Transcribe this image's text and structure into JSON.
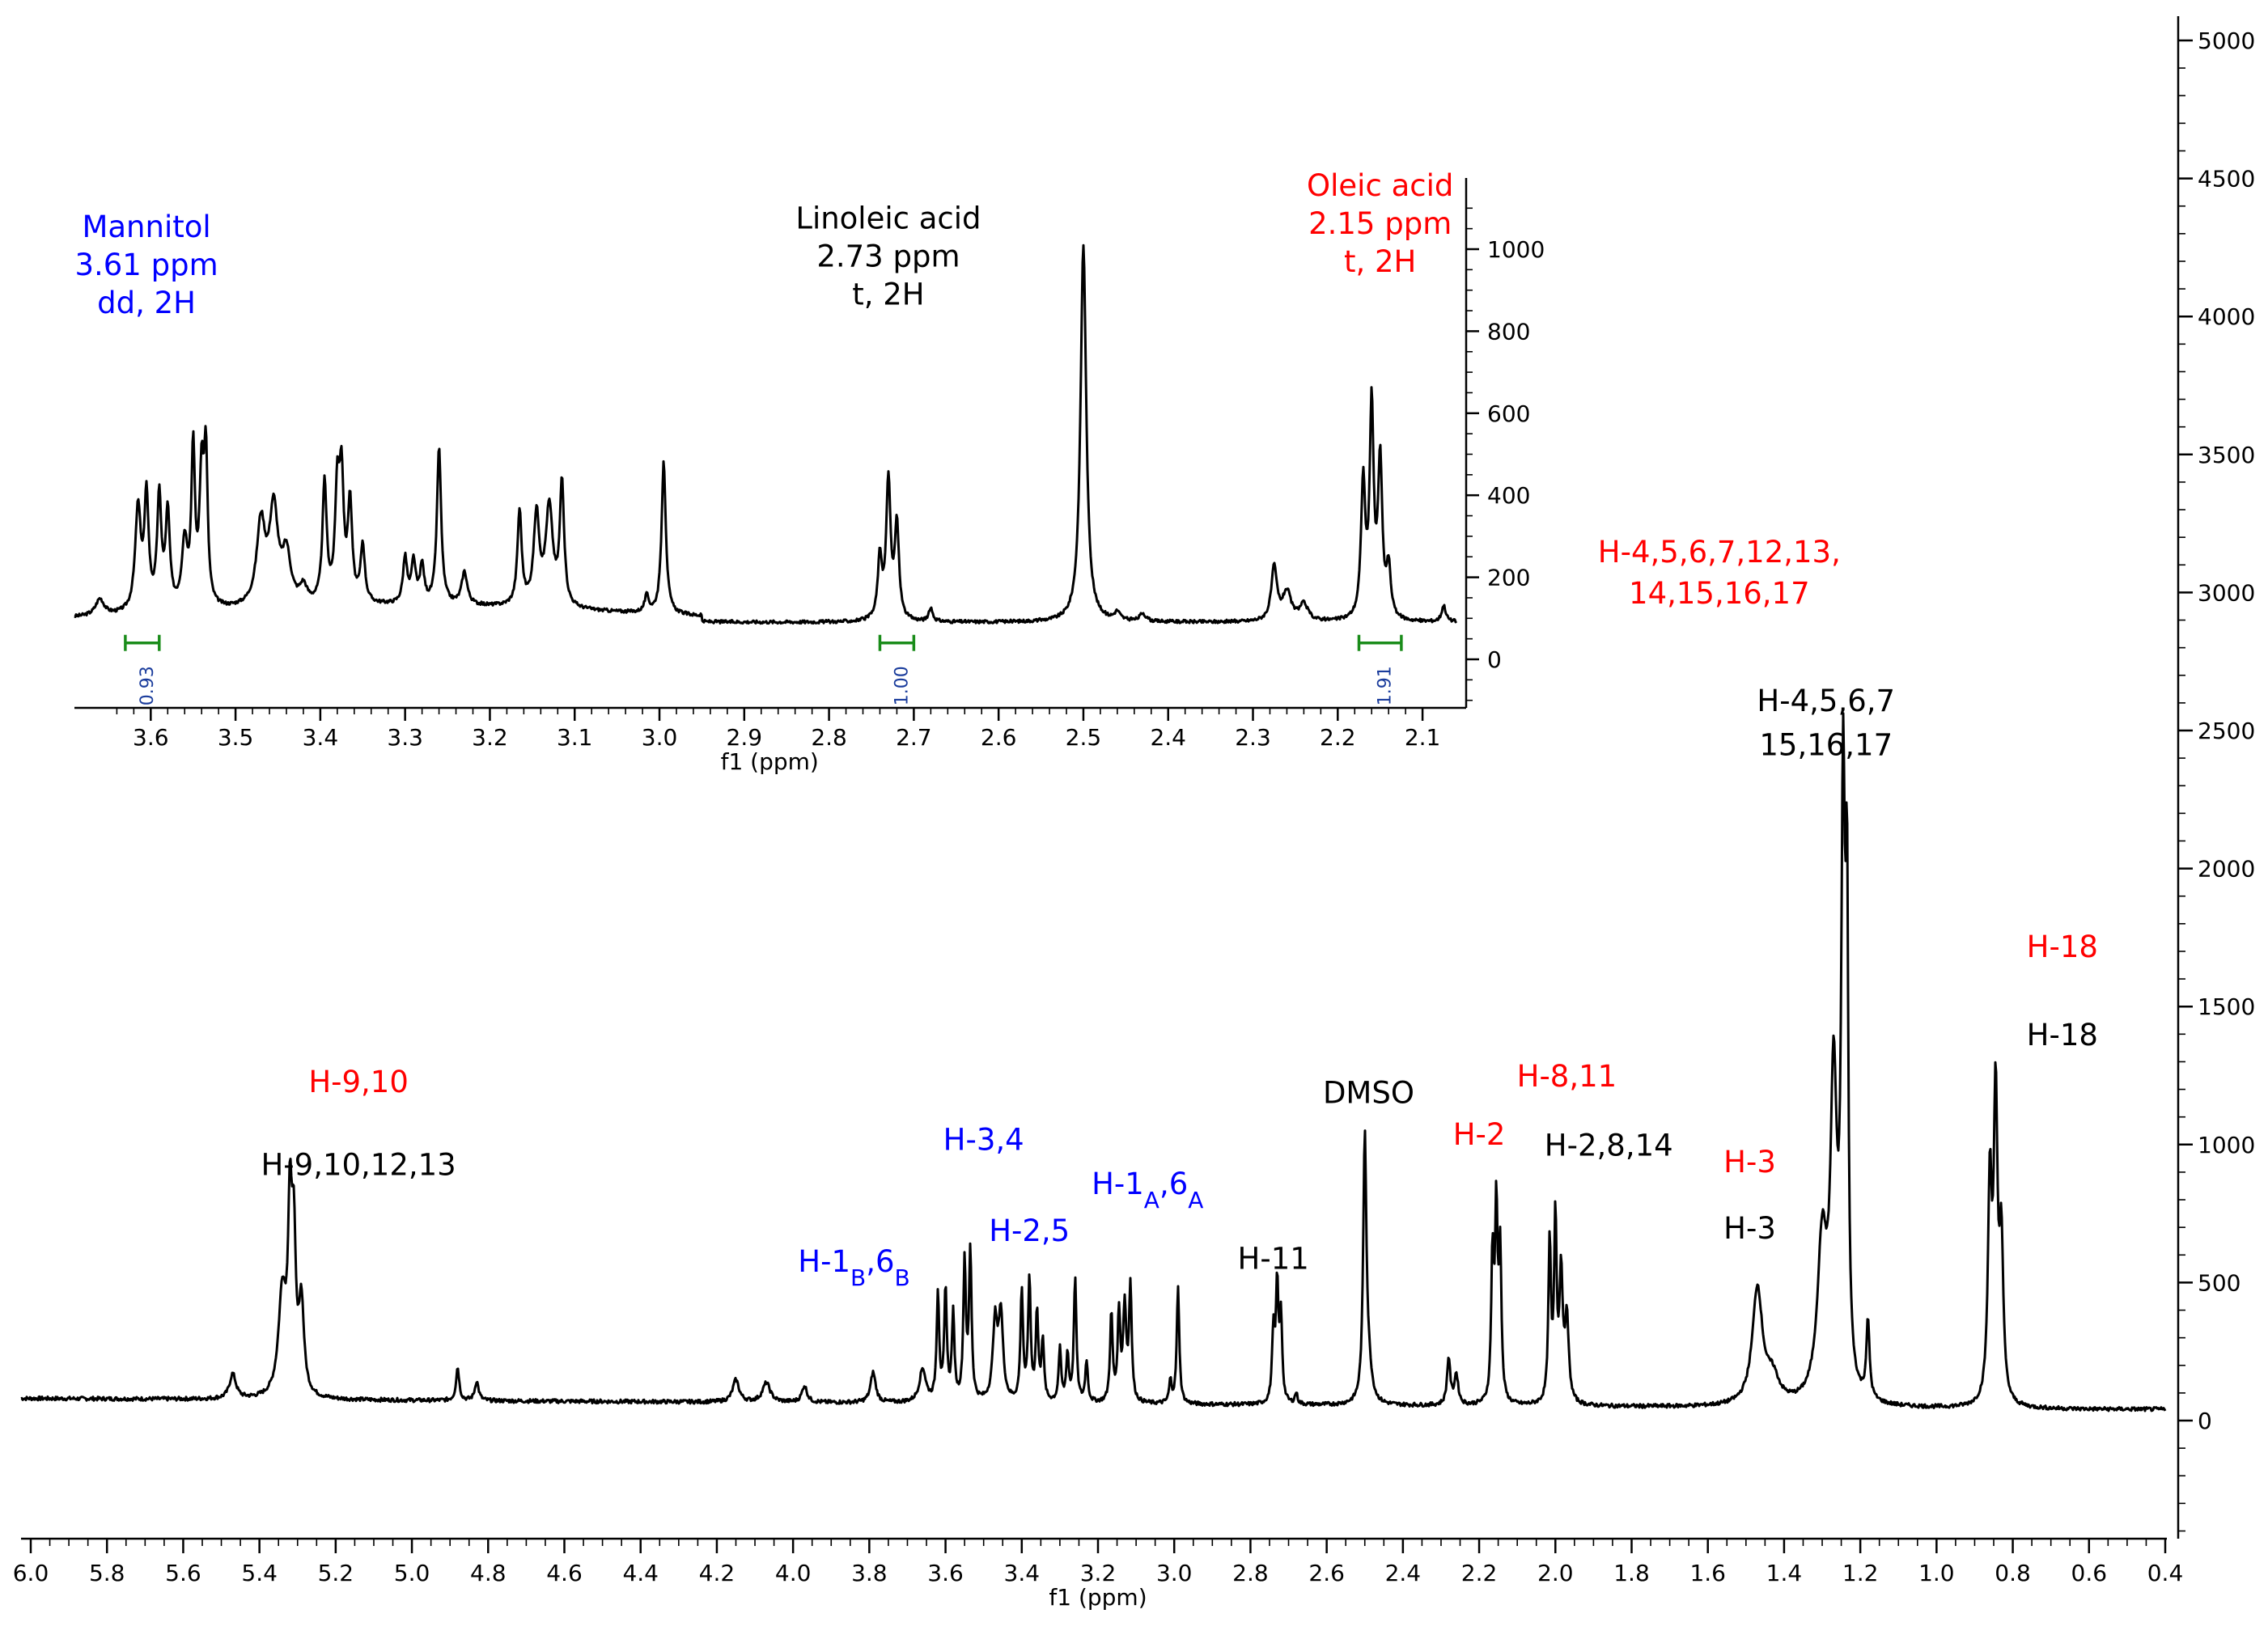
{
  "chart_data": [
    {
      "type": "line",
      "panel": "main",
      "xlabel": "f1 (ppm)",
      "ylabel": "",
      "xlim": [
        6.0,
        0.4
      ],
      "ylim": [
        -400,
        5000
      ],
      "x_reversed": true,
      "x_ticks": [
        "6.0",
        "5.8",
        "5.6",
        "5.4",
        "5.2",
        "5.0",
        "4.8",
        "4.6",
        "4.4",
        "4.2",
        "4.0",
        "3.8",
        "3.6",
        "3.4",
        "3.2",
        "3.0",
        "2.8",
        "2.6",
        "2.4",
        "2.2",
        "2.0",
        "1.8",
        "1.6",
        "1.4",
        "1.2",
        "1.0",
        "0.8",
        "0.6",
        "0.4"
      ],
      "y_ticks": [
        "0",
        "500",
        "1000",
        "1500",
        "2000",
        "2500",
        "3000",
        "3500",
        "4000",
        "4500",
        "5000"
      ],
      "peaks": [
        {
          "x": 5.47,
          "y": 90,
          "w": 0.01
        },
        {
          "x": 5.34,
          "y": 370,
          "w": 0.012
        },
        {
          "x": 5.32,
          "y": 620,
          "w": 0.006
        },
        {
          "x": 5.31,
          "y": 520,
          "w": 0.006
        },
        {
          "x": 5.29,
          "y": 330,
          "w": 0.008
        },
        {
          "x": 4.88,
          "y": 120,
          "w": 0.005
        },
        {
          "x": 4.83,
          "y": 70,
          "w": 0.006
        },
        {
          "x": 4.15,
          "y": 80,
          "w": 0.01
        },
        {
          "x": 4.07,
          "y": 70,
          "w": 0.012
        },
        {
          "x": 3.97,
          "y": 60,
          "w": 0.008
        },
        {
          "x": 3.79,
          "y": 110,
          "w": 0.008
        },
        {
          "x": 3.66,
          "y": 120,
          "w": 0.01
        },
        {
          "x": 3.62,
          "y": 390,
          "w": 0.004
        },
        {
          "x": 3.6,
          "y": 400,
          "w": 0.004
        },
        {
          "x": 3.58,
          "y": 310,
          "w": 0.004
        },
        {
          "x": 3.55,
          "y": 500,
          "w": 0.004
        },
        {
          "x": 3.535,
          "y": 540,
          "w": 0.004
        },
        {
          "x": 3.47,
          "y": 280,
          "w": 0.007
        },
        {
          "x": 3.455,
          "y": 310,
          "w": 0.007
        },
        {
          "x": 3.4,
          "y": 400,
          "w": 0.004
        },
        {
          "x": 3.38,
          "y": 440,
          "w": 0.004
        },
        {
          "x": 3.36,
          "y": 320,
          "w": 0.004
        },
        {
          "x": 3.345,
          "y": 220,
          "w": 0.004
        },
        {
          "x": 3.3,
          "y": 190,
          "w": 0.004
        },
        {
          "x": 3.28,
          "y": 170,
          "w": 0.004
        },
        {
          "x": 3.26,
          "y": 450,
          "w": 0.004
        },
        {
          "x": 3.23,
          "y": 150,
          "w": 0.004
        },
        {
          "x": 3.165,
          "y": 320,
          "w": 0.004
        },
        {
          "x": 3.145,
          "y": 320,
          "w": 0.004
        },
        {
          "x": 3.13,
          "y": 340,
          "w": 0.005
        },
        {
          "x": 3.115,
          "y": 420,
          "w": 0.004
        },
        {
          "x": 3.01,
          "y": 80,
          "w": 0.004
        },
        {
          "x": 2.99,
          "y": 420,
          "w": 0.004
        },
        {
          "x": 2.74,
          "y": 250,
          "w": 0.004
        },
        {
          "x": 2.73,
          "y": 420,
          "w": 0.004
        },
        {
          "x": 2.72,
          "y": 300,
          "w": 0.004
        },
        {
          "x": 2.68,
          "y": 40,
          "w": 0.004
        },
        {
          "x": 2.5,
          "y": 950,
          "w": 0.005
        },
        {
          "x": 2.49,
          "y": 110,
          "w": 0.01
        },
        {
          "x": 2.28,
          "y": 170,
          "w": 0.005
        },
        {
          "x": 2.26,
          "y": 110,
          "w": 0.006
        },
        {
          "x": 2.165,
          "y": 520,
          "w": 0.004
        },
        {
          "x": 2.155,
          "y": 680,
          "w": 0.004
        },
        {
          "x": 2.145,
          "y": 540,
          "w": 0.004
        },
        {
          "x": 2.015,
          "y": 580,
          "w": 0.004
        },
        {
          "x": 2.0,
          "y": 660,
          "w": 0.004
        },
        {
          "x": 1.985,
          "y": 460,
          "w": 0.005
        },
        {
          "x": 1.97,
          "y": 300,
          "w": 0.006
        },
        {
          "x": 1.47,
          "y": 420,
          "w": 0.016
        },
        {
          "x": 1.43,
          "y": 90,
          "w": 0.02
        },
        {
          "x": 1.3,
          "y": 560,
          "w": 0.015
        },
        {
          "x": 1.27,
          "y": 1100,
          "w": 0.01
        },
        {
          "x": 1.245,
          "y": 2100,
          "w": 0.006
        },
        {
          "x": 1.235,
          "y": 1550,
          "w": 0.004
        },
        {
          "x": 1.18,
          "y": 280,
          "w": 0.005
        },
        {
          "x": 0.86,
          "y": 780,
          "w": 0.006
        },
        {
          "x": 0.845,
          "y": 1080,
          "w": 0.006
        },
        {
          "x": 0.83,
          "y": 560,
          "w": 0.006
        }
      ],
      "annotations": [
        {
          "text": "H-9,10",
          "x": 5.14,
          "y": 1190,
          "color": "#ff0000"
        },
        {
          "text": "H-9,10,12,13",
          "x": 5.14,
          "y": 890,
          "color": "#000000"
        },
        {
          "text": "H-3,4",
          "x": 3.5,
          "y": 980,
          "color": "#0000ff"
        },
        {
          "text": "H-2,5",
          "x": 3.38,
          "y": 650,
          "color": "#0000ff"
        },
        {
          "text": "H-11",
          "x": 2.74,
          "y": 550,
          "color": "#000000"
        },
        {
          "text": "DMSO",
          "x": 2.49,
          "y": 1150,
          "color": "#000000"
        },
        {
          "text": "H-2",
          "x": 2.2,
          "y": 1000,
          "color": "#ff0000"
        },
        {
          "text": "H-8,11",
          "x": 1.97,
          "y": 1210,
          "color": "#ff0000"
        },
        {
          "text": "H-2,8,14",
          "x": 1.86,
          "y": 960,
          "color": "#000000"
        },
        {
          "text": "H-3",
          "x": 1.49,
          "y": 900,
          "color": "#ff0000"
        },
        {
          "text": "H-3",
          "x": 1.49,
          "y": 660,
          "color": "#000000"
        },
        {
          "text": "H-4,5,6,7",
          "x": 1.29,
          "y": 2570,
          "color": "#000000"
        },
        {
          "text": "15,16,17",
          "x": 1.29,
          "y": 2410,
          "color": "#000000"
        },
        {
          "text": "H-18",
          "x": 0.67,
          "y": 1680,
          "color": "#ff0000"
        },
        {
          "text": "H-18",
          "x": 0.67,
          "y": 1360,
          "color": "#000000"
        }
      ],
      "sub_annotations": [
        {
          "base": "H-1",
          "sub1": "B",
          "mid": ",6",
          "sub2": "B",
          "x": 3.84,
          "y": 540,
          "color": "#0000ff"
        },
        {
          "base": "H-1",
          "sub1": "A",
          "mid": ",6",
          "sub2": "A",
          "x": 3.07,
          "y": 820,
          "color": "#0000ff"
        }
      ],
      "red_multiline": {
        "line1": "H-4,5,6,7,12,13,",
        "line2": "14,15,16,17",
        "x": 1.57,
        "y1": 3110,
        "y2": 2960,
        "color": "#ff0000"
      }
    },
    {
      "type": "line",
      "panel": "inset",
      "xlabel": "f1 (ppm)",
      "ylabel": "",
      "xlim": [
        3.69,
        2.06
      ],
      "ylim": [
        -110,
        1160
      ],
      "x_reversed": true,
      "x_ticks": [
        "3.6",
        "3.5",
        "3.4",
        "3.3",
        "3.2",
        "3.1",
        "3.0",
        "2.9",
        "2.8",
        "2.7",
        "2.6",
        "2.5",
        "2.4",
        "2.3",
        "2.2",
        "2.1"
      ],
      "y_ticks": [
        "0",
        "200",
        "400",
        "600",
        "800",
        "1000"
      ],
      "baseline": 90,
      "peaks": [
        {
          "x": 3.66,
          "y": 40,
          "w": 0.006
        },
        {
          "x": 3.615,
          "y": 250,
          "w": 0.004
        },
        {
          "x": 3.605,
          "y": 270,
          "w": 0.003
        },
        {
          "x": 3.59,
          "y": 270,
          "w": 0.003
        },
        {
          "x": 3.58,
          "y": 230,
          "w": 0.003
        },
        {
          "x": 3.56,
          "y": 160,
          "w": 0.004
        },
        {
          "x": 3.55,
          "y": 380,
          "w": 0.0025
        },
        {
          "x": 3.54,
          "y": 310,
          "w": 0.003
        },
        {
          "x": 3.535,
          "y": 350,
          "w": 0.0025
        },
        {
          "x": 3.47,
          "y": 200,
          "w": 0.006
        },
        {
          "x": 3.455,
          "y": 230,
          "w": 0.006
        },
        {
          "x": 3.44,
          "y": 120,
          "w": 0.006
        },
        {
          "x": 3.42,
          "y": 40,
          "w": 0.005
        },
        {
          "x": 3.395,
          "y": 290,
          "w": 0.003
        },
        {
          "x": 3.38,
          "y": 260,
          "w": 0.003
        },
        {
          "x": 3.375,
          "y": 290,
          "w": 0.003
        },
        {
          "x": 3.365,
          "y": 240,
          "w": 0.003
        },
        {
          "x": 3.35,
          "y": 140,
          "w": 0.003
        },
        {
          "x": 3.3,
          "y": 110,
          "w": 0.003
        },
        {
          "x": 3.29,
          "y": 100,
          "w": 0.003
        },
        {
          "x": 3.28,
          "y": 90,
          "w": 0.003
        },
        {
          "x": 3.26,
          "y": 380,
          "w": 0.003
        },
        {
          "x": 3.23,
          "y": 80,
          "w": 0.004
        },
        {
          "x": 3.165,
          "y": 230,
          "w": 0.003
        },
        {
          "x": 3.145,
          "y": 220,
          "w": 0.004
        },
        {
          "x": 3.13,
          "y": 240,
          "w": 0.005
        },
        {
          "x": 3.115,
          "y": 300,
          "w": 0.003
        },
        {
          "x": 3.015,
          "y": 40,
          "w": 0.003
        },
        {
          "x": 2.995,
          "y": 370,
          "w": 0.003
        },
        {
          "x": 2.74,
          "y": 150,
          "w": 0.003
        },
        {
          "x": 2.73,
          "y": 340,
          "w": 0.003
        },
        {
          "x": 2.72,
          "y": 230,
          "w": 0.003
        },
        {
          "x": 2.68,
          "y": 30,
          "w": 0.003
        },
        {
          "x": 2.5,
          "y": 920,
          "w": 0.004
        },
        {
          "x": 2.46,
          "y": 20,
          "w": 0.004
        },
        {
          "x": 2.43,
          "y": 20,
          "w": 0.004
        },
        {
          "x": 2.275,
          "y": 130,
          "w": 0.004
        },
        {
          "x": 2.26,
          "y": 70,
          "w": 0.006
        },
        {
          "x": 2.24,
          "y": 40,
          "w": 0.006
        },
        {
          "x": 2.17,
          "y": 330,
          "w": 0.003
        },
        {
          "x": 2.16,
          "y": 510,
          "w": 0.0028
        },
        {
          "x": 2.15,
          "y": 380,
          "w": 0.003
        },
        {
          "x": 2.14,
          "y": 120,
          "w": 0.003
        },
        {
          "x": 2.075,
          "y": 40,
          "w": 0.003
        }
      ],
      "annotations": [
        {
          "lines": [
            "Mannitol",
            "3.61 ppm",
            "dd, 2H"
          ],
          "x": 3.605,
          "y_top": 1030,
          "color": "#0000ff"
        },
        {
          "lines": [
            "Linoleic acid",
            "2.73 ppm",
            "t, 2H"
          ],
          "x": 2.73,
          "y_top": 1050,
          "color": "#000000"
        },
        {
          "lines": [
            "Oleic acid",
            "2.15 ppm",
            "t, 2H"
          ],
          "x": 2.15,
          "y_top": 1130,
          "color": "#ff0000"
        }
      ],
      "integrals": [
        {
          "label": "0.93",
          "from": 3.63,
          "to": 3.59
        },
        {
          "label": "1.00",
          "from": 2.74,
          "to": 2.7
        },
        {
          "label": "1.91",
          "from": 2.175,
          "to": 2.125
        }
      ]
    }
  ]
}
